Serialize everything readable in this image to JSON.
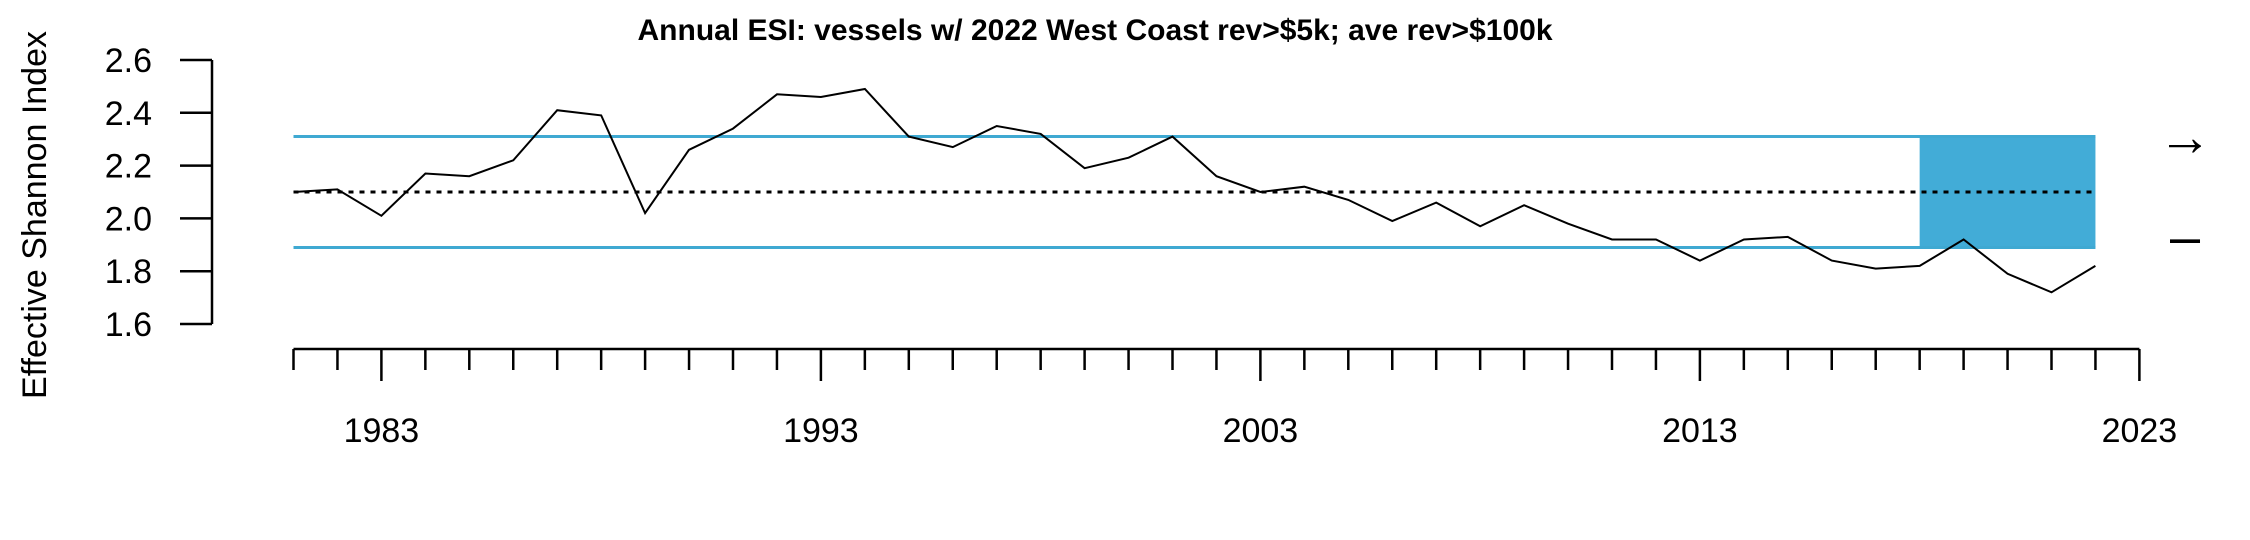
{
  "chart_data": {
    "type": "line",
    "title": "Annual ESI: vessels w/ 2022 West Coast rev>$5k; ave rev>$100k",
    "xlabel": "",
    "ylabel": "Effective Shannon Index",
    "xlim": [
      1981,
      2023
    ],
    "ylim": [
      1.6,
      2.6
    ],
    "y_ticks": [
      "1.6",
      "1.8",
      "2.0",
      "2.2",
      "2.4",
      "2.6"
    ],
    "x_tick_labels": [
      "1983",
      "1993",
      "2003",
      "2013",
      "2023"
    ],
    "x_major_ticks": [
      1983,
      1993,
      2003,
      2013,
      2023
    ],
    "x_minor_ticks": [
      1981,
      1982,
      1984,
      1985,
      1986,
      1987,
      1988,
      1989,
      1990,
      1991,
      1992,
      1994,
      1995,
      1996,
      1997,
      1998,
      1999,
      2000,
      2001,
      2002,
      2004,
      2005,
      2006,
      2007,
      2008,
      2009,
      2010,
      2011,
      2012,
      2014,
      2015,
      2016,
      2017,
      2018,
      2019,
      2020,
      2021,
      2022
    ],
    "series": [
      {
        "color": "#000000",
        "x": [
          1981,
          1982,
          1983,
          1984,
          1985,
          1986,
          1987,
          1988,
          1989,
          1990,
          1991,
          1992,
          1993,
          1994,
          1995,
          1996,
          1997,
          1998,
          1999,
          2000,
          2001,
          2002,
          2003,
          2004,
          2005,
          2006,
          2007,
          2008,
          2009,
          2010,
          2011,
          2012,
          2013,
          2014,
          2015,
          2016,
          2017,
          2018,
          2019,
          2020,
          2021,
          2022
        ],
        "values": [
          2.1,
          2.11,
          2.01,
          2.17,
          2.16,
          2.22,
          2.41,
          2.39,
          2.02,
          2.26,
          2.34,
          2.47,
          2.46,
          2.49,
          2.31,
          2.27,
          2.35,
          2.32,
          2.19,
          2.23,
          2.31,
          2.16,
          2.1,
          2.12,
          2.07,
          1.99,
          2.06,
          1.97,
          2.05,
          1.98,
          1.92,
          1.92,
          1.84,
          1.92,
          1.93,
          1.84,
          1.81,
          1.82,
          1.92,
          1.79,
          1.72,
          1.82
        ]
      }
    ],
    "mean_line": {
      "value": 2.1,
      "style": "dotted",
      "color": "#000000"
    },
    "sd_lines": {
      "upper": 2.31,
      "lower": 1.89,
      "color": "#3fa9d2"
    },
    "highlight_box": {
      "x_from": 2018,
      "x_to": 2022,
      "y_from": 1.89,
      "y_to": 2.31,
      "color": "#42acd7"
    },
    "trend_indicators": {
      "mean_trend": "→",
      "sd_trend": "–"
    },
    "grid": false
  }
}
